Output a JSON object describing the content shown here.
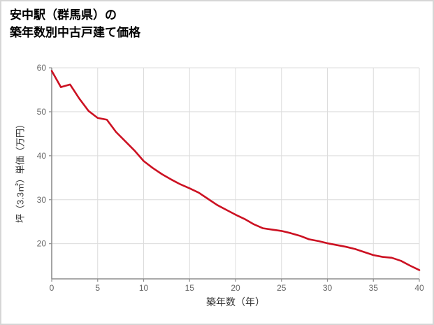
{
  "page": {
    "title_line1": "安中駅（群馬県）の",
    "title_line2": "築年数別中古戸建て価格"
  },
  "chart_data": {
    "type": "line",
    "title": "安中駅（群馬県）の築年数別中古戸建て価格",
    "xlabel": "築年数（年）",
    "ylabel": "坪（3.3㎡）単価（万円）",
    "x": [
      0,
      1,
      2,
      3,
      4,
      5,
      6,
      7,
      8,
      9,
      10,
      11,
      12,
      13,
      14,
      15,
      16,
      17,
      18,
      19,
      20,
      21,
      22,
      23,
      24,
      25,
      26,
      27,
      28,
      29,
      30,
      31,
      32,
      33,
      34,
      35,
      36,
      37,
      38,
      39,
      40
    ],
    "values": [
      59.3,
      55.6,
      56.2,
      53.0,
      50.2,
      48.6,
      48.2,
      45.4,
      43.3,
      41.2,
      38.8,
      37.2,
      35.8,
      34.6,
      33.5,
      32.6,
      31.6,
      30.2,
      28.8,
      27.7,
      26.6,
      25.6,
      24.4,
      23.5,
      23.2,
      22.9,
      22.4,
      21.8,
      21.0,
      20.6,
      20.1,
      19.7,
      19.3,
      18.8,
      18.1,
      17.4,
      17.0,
      16.8,
      16.1,
      15.0,
      14.0
    ],
    "xlim": [
      0,
      40
    ],
    "ylim": [
      12,
      60
    ],
    "xticks": [
      0,
      5,
      10,
      15,
      20,
      25,
      30,
      35,
      40
    ],
    "yticks": [
      20,
      30,
      40,
      50,
      60
    ],
    "grid": true,
    "legend": "none"
  },
  "colors": {
    "line": "#cc1122",
    "grid": "#dcdcdc",
    "axis": "#8e8e8e",
    "tick_text": "#666666",
    "background": "#ffffff",
    "border": "#d6d6d6"
  }
}
